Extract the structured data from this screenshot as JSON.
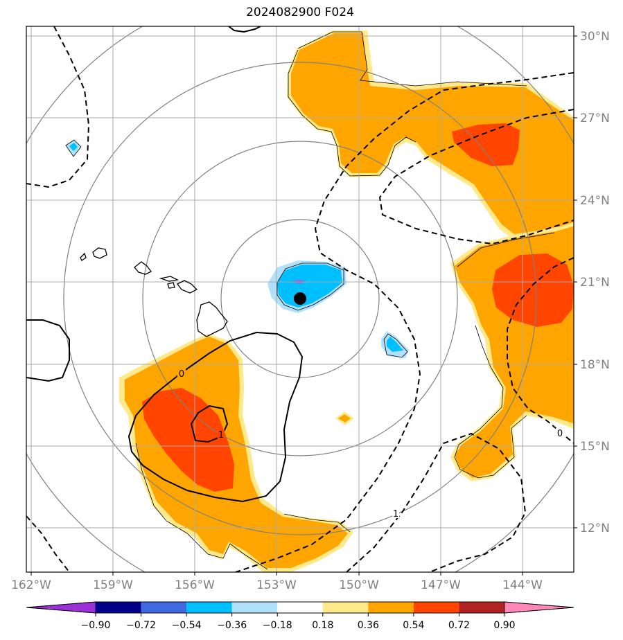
{
  "title": "2024082900 F024",
  "lat_labels": [
    "30°N",
    "27°N",
    "24°N",
    "21°N",
    "18°N",
    "15°N",
    "12°N"
  ],
  "lon_labels": [
    "162°W",
    "159°W",
    "156°W",
    "153°W",
    "150°W",
    "147°W",
    "144°W"
  ],
  "contour_labels": [
    "0",
    "1",
    "1",
    "0"
  ],
  "colorbar": {
    "ticks": [
      "−0.90",
      "−0.72",
      "−0.54",
      "−0.36",
      "−0.18",
      "0.18",
      "0.36",
      "0.54",
      "0.72",
      "0.90"
    ],
    "colors": [
      "#9b30d9",
      "#00008b",
      "#4169e1",
      "#00bfff",
      "#b0e0fa",
      "#ffffff",
      "#ffe98a",
      "#ffa500",
      "#ff4500",
      "#b22222",
      "#ff88b8"
    ]
  },
  "colors": {
    "orange": "#ffa500",
    "light_yellow": "#ffe98a",
    "red_orange": "#ff4500",
    "cyan": "#00bfff",
    "light_blue": "#b0e0fa",
    "purple": "#8a6bd9",
    "grid": "#9a9a9a",
    "range_ring": "#808080",
    "tick_text": "#808080"
  },
  "center_marker": "black-dot"
}
